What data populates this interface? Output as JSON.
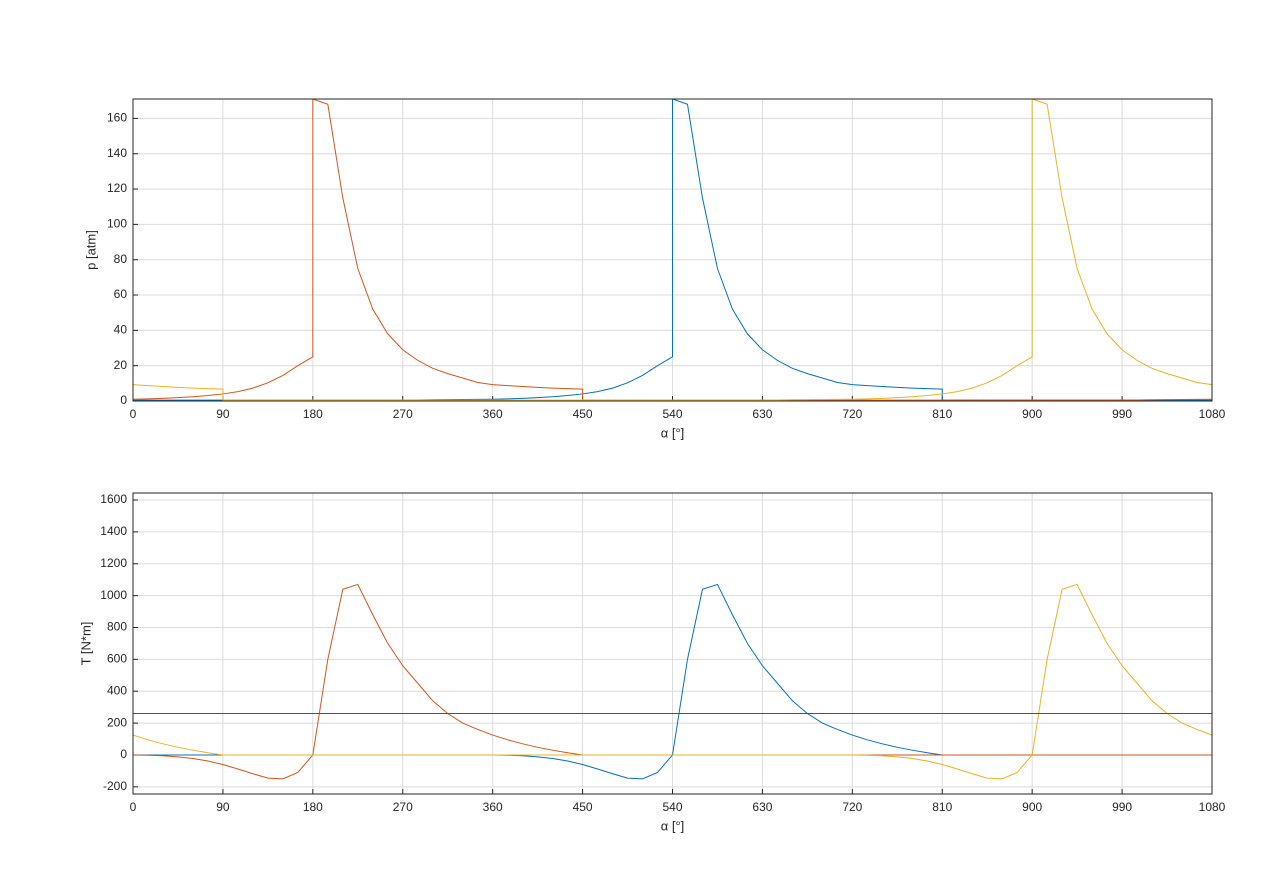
{
  "chart_data": [
    {
      "type": "line",
      "xlabel": "α [°]",
      "ylabel": "p [atm]",
      "grid": true,
      "xlim": [
        0,
        1080
      ],
      "xticks": [
        0,
        90,
        180,
        270,
        360,
        450,
        540,
        630,
        720,
        810,
        900,
        990,
        1080
      ],
      "ylim": [
        0,
        171
      ],
      "yticks": [
        0,
        20,
        40,
        60,
        80,
        100,
        120,
        140,
        160
      ],
      "x": [
        0,
        15,
        30,
        45,
        60,
        75,
        90,
        90,
        105,
        120,
        135,
        150,
        165,
        180,
        180,
        195,
        210,
        225,
        240,
        255,
        270,
        285,
        300,
        315,
        330,
        345,
        360,
        375,
        390,
        405,
        420,
        435,
        450,
        450,
        465,
        480,
        495,
        510,
        525,
        540,
        540,
        555,
        570,
        585,
        600,
        615,
        630,
        645,
        660,
        675,
        690,
        705,
        720,
        735,
        750,
        765,
        780,
        795,
        810,
        810,
        825,
        840,
        855,
        870,
        885,
        900,
        900,
        915,
        930,
        945,
        960,
        975,
        990,
        1005,
        1020,
        1035,
        1050,
        1065,
        1080
      ],
      "series": [
        {
          "color": "#0072bd",
          "values": [
            0.5,
            0.5,
            0.5,
            0.5,
            0.5,
            0.5,
            0.5,
            0.5,
            0.5,
            0.5,
            0.5,
            0.5,
            0.5,
            0.5,
            0.5,
            0.5,
            0.5,
            0.5,
            0.5,
            0.5,
            0.5,
            0.6,
            0.7,
            0.8,
            0.85,
            0.9,
            1,
            1.2,
            1.5,
            1.9,
            2.4,
            3.1,
            4,
            4,
            5.3,
            7.3,
            10.3,
            14.5,
            20,
            25,
            171,
            168,
            115,
            75,
            52,
            38,
            29,
            23,
            18.5,
            15.5,
            13,
            10.5,
            9.3,
            8.7,
            8.2,
            7.7,
            7.3,
            7,
            6.7,
            0.5,
            0.5,
            0.5,
            0.5,
            0.5,
            0.5,
            0.5,
            0.5,
            0.5,
            0.5,
            0.5,
            0.5,
            0.5,
            0.5,
            0.5,
            0.5,
            0.5,
            0.5,
            0.5,
            0.5
          ]
        },
        {
          "color": "#d95319",
          "values": [
            1,
            1.2,
            1.5,
            1.9,
            2.4,
            3.1,
            4,
            4,
            5.3,
            7.3,
            10.3,
            14.5,
            20,
            25,
            171,
            168,
            115,
            75,
            52,
            38,
            29,
            23,
            18.5,
            15.5,
            13,
            10.5,
            9.3,
            8.7,
            8.2,
            7.7,
            7.3,
            7,
            6.7,
            0.5,
            0.5,
            0.5,
            0.5,
            0.5,
            0.5,
            0.5,
            0.5,
            0.5,
            0.5,
            0.5,
            0.5,
            0.5,
            0.5,
            0.5,
            0.5,
            0.5,
            0.5,
            0.5,
            0.5,
            0.5,
            0.5,
            0.5,
            0.5,
            0.5,
            0.5,
            0.5,
            0.5,
            0.5,
            0.5,
            0.5,
            0.5,
            0.5,
            0.5,
            0.5,
            0.5,
            0.5,
            0.5,
            0.5,
            0.5,
            0.6,
            0.7,
            0.8,
            0.85,
            0.9,
            1
          ]
        },
        {
          "color": "#edb120",
          "values": [
            9.3,
            8.7,
            8.2,
            7.7,
            7.3,
            7,
            6.7,
            0.5,
            0.5,
            0.5,
            0.5,
            0.5,
            0.5,
            0.5,
            0.5,
            0.5,
            0.5,
            0.5,
            0.5,
            0.5,
            0.5,
            0.5,
            0.5,
            0.5,
            0.5,
            0.5,
            0.5,
            0.5,
            0.5,
            0.5,
            0.5,
            0.5,
            0.5,
            0.5,
            0.5,
            0.5,
            0.5,
            0.5,
            0.5,
            0.5,
            0.5,
            0.5,
            0.5,
            0.5,
            0.5,
            0.5,
            0.5,
            0.6,
            0.7,
            0.8,
            0.85,
            0.9,
            1,
            1.2,
            1.5,
            1.9,
            2.4,
            3.1,
            4,
            4,
            5.3,
            7.3,
            10.3,
            14.5,
            20,
            25,
            171,
            168,
            115,
            75,
            52,
            38,
            29,
            23,
            18.5,
            15.5,
            13,
            10.5,
            9.3
          ]
        }
      ]
    },
    {
      "type": "line",
      "xlabel": "α [°]",
      "ylabel": "T [N*m]",
      "grid": true,
      "xlim": [
        0,
        1080
      ],
      "xticks": [
        0,
        90,
        180,
        270,
        360,
        450,
        540,
        630,
        720,
        810,
        900,
        990,
        1080
      ],
      "ylim": [
        -245,
        1644
      ],
      "yticks": [
        -200,
        0,
        200,
        400,
        600,
        800,
        1000,
        1200,
        1400,
        1600
      ],
      "x": [
        0,
        15,
        30,
        45,
        60,
        75,
        90,
        90,
        105,
        120,
        135,
        150,
        165,
        180,
        180,
        195,
        210,
        225,
        240,
        255,
        270,
        285,
        300,
        315,
        330,
        345,
        360,
        375,
        390,
        405,
        420,
        435,
        450,
        450,
        465,
        480,
        495,
        510,
        525,
        540,
        540,
        555,
        570,
        585,
        600,
        615,
        630,
        645,
        660,
        675,
        690,
        705,
        720,
        735,
        750,
        765,
        780,
        795,
        810,
        810,
        825,
        840,
        855,
        870,
        885,
        900,
        900,
        915,
        930,
        945,
        960,
        975,
        990,
        1005,
        1020,
        1035,
        1050,
        1065,
        1080
      ],
      "series": [
        {
          "color": "#0072bd",
          "values": [
            0,
            0,
            0,
            0,
            0,
            0,
            0,
            0,
            0,
            0,
            0,
            0,
            0,
            0,
            0,
            0,
            0,
            0,
            0,
            0,
            0,
            0,
            0,
            0,
            0,
            0,
            0,
            -2,
            -5,
            -12,
            -22,
            -38,
            -60,
            -60,
            -88,
            -118,
            -145,
            -150,
            -110,
            0,
            0,
            600,
            1040,
            1070,
            880,
            700,
            560,
            450,
            340,
            260,
            200,
            160,
            125,
            95,
            70,
            48,
            30,
            14,
            0,
            0,
            0,
            0,
            0,
            0,
            0,
            0,
            0,
            0,
            0,
            0,
            0,
            0,
            0,
            0,
            0,
            0,
            0,
            0,
            0
          ]
        },
        {
          "color": "#d95319",
          "values": [
            0,
            -2,
            -5,
            -12,
            -22,
            -38,
            -60,
            -60,
            -88,
            -118,
            -145,
            -150,
            -110,
            0,
            0,
            600,
            1040,
            1070,
            880,
            700,
            560,
            450,
            340,
            260,
            200,
            160,
            125,
            95,
            70,
            48,
            30,
            14,
            0,
            0,
            0,
            0,
            0,
            0,
            0,
            0,
            0,
            0,
            0,
            0,
            0,
            0,
            0,
            0,
            0,
            0,
            0,
            0,
            0,
            0,
            0,
            0,
            0,
            0,
            0,
            0,
            0,
            0,
            0,
            0,
            0,
            0,
            0,
            0,
            0,
            0,
            0,
            0,
            0,
            0,
            0,
            0,
            0,
            0,
            0
          ]
        },
        {
          "color": "#edb120",
          "values": [
            125,
            95,
            70,
            48,
            30,
            14,
            0,
            0,
            0,
            0,
            0,
            0,
            0,
            0,
            0,
            0,
            0,
            0,
            0,
            0,
            0,
            0,
            0,
            0,
            0,
            0,
            0,
            0,
            0,
            0,
            0,
            0,
            0,
            0,
            0,
            0,
            0,
            0,
            0,
            0,
            0,
            0,
            0,
            0,
            0,
            0,
            0,
            0,
            0,
            0,
            0,
            0,
            0,
            -2,
            -5,
            -12,
            -22,
            -38,
            -60,
            -60,
            -88,
            -118,
            -145,
            -150,
            -110,
            0,
            0,
            600,
            1040,
            1070,
            880,
            700,
            560,
            450,
            340,
            260,
            200,
            160,
            125
          ]
        },
        {
          "color": "#7e2f8e",
          "x": [
            0,
            1080
          ],
          "values": [
            260,
            260
          ]
        }
      ]
    }
  ]
}
